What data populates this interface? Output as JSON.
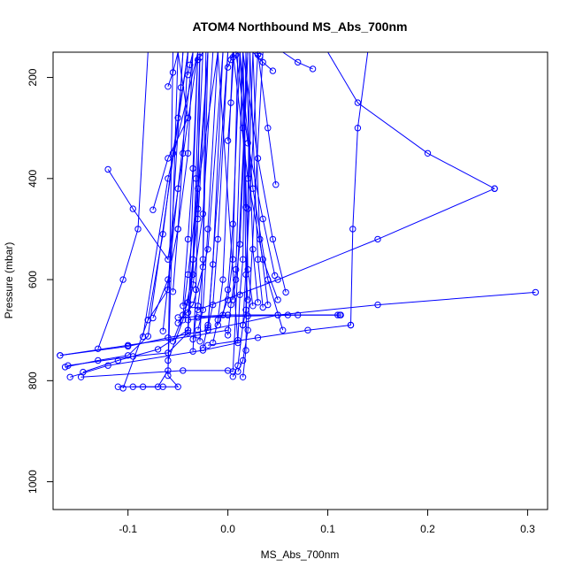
{
  "chart_data": {
    "type": "line",
    "title": "ATOM4 Northbound MS_Abs_700nm",
    "xlabel": "MS_Abs_700nm",
    "ylabel": "Pressure (mbar)",
    "xlim": [
      -0.175,
      0.32
    ],
    "ylim": [
      1055,
      150
    ],
    "y_reversed": true,
    "grid": false,
    "x_ticks": [
      -0.1,
      0.0,
      0.1,
      0.2,
      0.3
    ],
    "x_tick_labels": [
      "-0.1",
      "0.0",
      "0.1",
      "0.2",
      "0.3"
    ],
    "y_ticks": [
      200,
      400,
      600,
      800,
      1000
    ],
    "y_tick_labels": [
      "200",
      "400",
      "600",
      "800",
      "1000"
    ],
    "color": "#0000ff",
    "series": [
      {
        "x": [
          -0.11,
          -0.065,
          -0.05,
          -0.06,
          -0.055
        ],
        "y": [
          812,
          812,
          812,
          790,
          150
        ]
      },
      {
        "x": [
          -0.095,
          -0.085,
          -0.07,
          -0.06,
          -0.05
        ],
        "y": [
          812,
          812,
          812,
          780,
          150
        ]
      },
      {
        "x": [
          -0.147,
          -0.045,
          0.0,
          0.005,
          0.02
        ],
        "y": [
          793,
          780,
          780,
          782,
          150
        ]
      },
      {
        "x": [
          -0.158,
          -0.12,
          -0.025,
          0.01,
          -0.01
        ],
        "y": [
          793,
          770,
          740,
          725,
          150
        ]
      },
      {
        "x": [
          -0.163,
          -0.13,
          -0.1,
          -0.08,
          -0.04
        ],
        "y": [
          773,
          760,
          750,
          712,
          150
        ]
      },
      {
        "x": [
          -0.168,
          -0.1,
          -0.06,
          -0.02,
          0.0
        ],
        "y": [
          750,
          732,
          715,
          700,
          150
        ]
      },
      {
        "x": [
          -0.16,
          -0.095,
          -0.06,
          -0.04,
          -0.02
        ],
        "y": [
          770,
          752,
          745,
          705,
          150
        ]
      },
      {
        "x": [
          -0.145,
          -0.11,
          -0.07,
          -0.04,
          -0.03
        ],
        "y": [
          783,
          760,
          738,
          700,
          150
        ]
      },
      {
        "x": [
          -0.105,
          -0.08,
          -0.06,
          -0.045
        ],
        "y": [
          815,
          680,
          620,
          150
        ]
      },
      {
        "x": [
          -0.12,
          -0.095,
          -0.06,
          -0.03
        ],
        "y": [
          382,
          460,
          560,
          150
        ]
      },
      {
        "x": [
          -0.13,
          -0.105,
          -0.09,
          -0.08
        ],
        "y": [
          737,
          600,
          500,
          150
        ]
      },
      {
        "x": [
          -0.075,
          -0.06,
          -0.04,
          -0.05
        ],
        "y": [
          462,
          360,
          280,
          150
        ]
      },
      {
        "x": [
          -0.08,
          -0.065,
          -0.055,
          -0.04
        ],
        "y": [
          680,
          510,
          350,
          150
        ]
      },
      {
        "x": [
          -0.06,
          -0.045,
          -0.035,
          -0.025
        ],
        "y": [
          760,
          680,
          590,
          150
        ]
      },
      {
        "x": [
          -0.055,
          -0.04,
          -0.03,
          -0.02
        ],
        "y": [
          722,
          645,
          480,
          150
        ]
      },
      {
        "x": [
          -0.05,
          -0.035,
          -0.02,
          -0.005
        ],
        "y": [
          686,
          650,
          540,
          150
        ]
      },
      {
        "x": [
          -0.045,
          -0.04,
          -0.03,
          -0.01
        ],
        "y": [
          670,
          590,
          420,
          150
        ]
      },
      {
        "x": [
          -0.04,
          -0.035,
          -0.025,
          -0.015
        ],
        "y": [
          665,
          610,
          470,
          150
        ]
      },
      {
        "x": [
          -0.035,
          -0.03,
          -0.025,
          -0.02
        ],
        "y": [
          718,
          652,
          575,
          150
        ]
      },
      {
        "x": [
          -0.03,
          -0.025,
          -0.02,
          -0.01
        ],
        "y": [
          700,
          660,
          500,
          150
        ]
      },
      {
        "x": [
          -0.025,
          -0.02,
          -0.015,
          -0.005
        ],
        "y": [
          735,
          690,
          570,
          150
        ]
      },
      {
        "x": [
          -0.02,
          -0.015,
          -0.01,
          0.0
        ],
        "y": [
          695,
          650,
          520,
          150
        ]
      },
      {
        "x": [
          -0.015,
          -0.01,
          -0.005,
          0.005
        ],
        "y": [
          725,
          680,
          600,
          150
        ]
      },
      {
        "x": [
          -0.01,
          0.0,
          0.005,
          0.01
        ],
        "y": [
          690,
          640,
          560,
          150
        ]
      },
      {
        "x": [
          -0.005,
          0.0,
          0.005,
          0.012
        ],
        "y": [
          670,
          620,
          490,
          150
        ]
      },
      {
        "x": [
          0.0,
          0.003,
          0.008,
          0.015
        ],
        "y": [
          710,
          650,
          580,
          150
        ]
      },
      {
        "x": [
          0.005,
          0.008,
          0.012,
          0.02
        ],
        "y": [
          640,
          600,
          530,
          150
        ]
      },
      {
        "x": [
          0.01,
          0.012,
          0.015,
          0.018
        ],
        "y": [
          720,
          630,
          560,
          150
        ]
      },
      {
        "x": [
          0.015,
          0.018,
          0.02,
          0.025
        ],
        "y": [
          690,
          660,
          460,
          150
        ]
      },
      {
        "x": [
          0.005,
          0.01,
          0.015,
          0.03
        ],
        "y": [
          792,
          770,
          690,
          150
        ]
      },
      {
        "x": [
          0.01,
          0.015,
          0.02,
          0.035
        ],
        "y": [
          782,
          760,
          700,
          150
        ]
      },
      {
        "x": [
          0.015,
          0.018,
          0.022
        ],
        "y": [
          793,
          740,
          150
        ]
      },
      {
        "x": [
          -0.075,
          -0.06,
          -0.05,
          -0.04,
          -0.035
        ],
        "y": [
          676,
          600,
          500,
          350,
          150
        ]
      },
      {
        "x": [
          -0.055,
          -0.05,
          -0.045,
          -0.04
        ],
        "y": [
          624,
          500,
          350,
          150
        ]
      },
      {
        "x": [
          -0.045,
          -0.04,
          -0.035,
          -0.03
        ],
        "y": [
          652,
          520,
          380,
          150
        ]
      },
      {
        "x": [
          -0.04,
          -0.035,
          -0.032,
          -0.028
        ],
        "y": [
          700,
          560,
          400,
          150
        ]
      },
      {
        "x": [
          -0.035,
          -0.032,
          -0.03,
          -0.028
        ],
        "y": [
          742,
          620,
          460,
          150
        ]
      },
      {
        "x": [
          -0.028,
          -0.025,
          -0.022
        ],
        "y": [
          722,
          560,
          150
        ]
      },
      {
        "x": [
          -0.06,
          -0.055,
          -0.05
        ],
        "y": [
          218,
          190,
          150
        ]
      },
      {
        "x": [
          -0.05,
          -0.047,
          -0.045
        ],
        "y": [
          280,
          220,
          150
        ]
      },
      {
        "x": [
          -0.04,
          -0.038,
          -0.035
        ],
        "y": [
          195,
          175,
          150
        ]
      },
      {
        "x": [
          -0.03,
          -0.028,
          -0.025
        ],
        "y": [
          165,
          160,
          150
        ]
      },
      {
        "x": [
          0.0,
          0.003,
          0.005
        ],
        "y": [
          180,
          165,
          150
        ]
      },
      {
        "x": [
          0.005,
          0.008,
          0.01
        ],
        "y": [
          160,
          155,
          150
        ]
      },
      {
        "x": [
          0.0,
          0.003,
          0.006
        ],
        "y": [
          325,
          250,
          150
        ]
      },
      {
        "x": [
          0.018,
          0.015,
          0.012
        ],
        "y": [
          457,
          300,
          150
        ]
      },
      {
        "x": [
          0.048,
          0.04,
          0.03
        ],
        "y": [
          412,
          300,
          150
        ]
      },
      {
        "x": [
          0.045,
          0.035,
          0.025
        ],
        "y": [
          187,
          170,
          150
        ]
      },
      {
        "x": [
          0.085,
          0.07,
          0.055
        ],
        "y": [
          183,
          170,
          150
        ]
      },
      {
        "x": [
          0.032,
          0.03,
          0.028
        ],
        "y": [
          158,
          155,
          150
        ]
      },
      {
        "x": [
          0.05,
          0.035,
          0.02,
          0.005
        ],
        "y": [
          640,
          560,
          400,
          150
        ]
      },
      {
        "x": [
          0.055,
          0.04,
          0.025,
          0.012
        ],
        "y": [
          700,
          600,
          420,
          150
        ]
      },
      {
        "x": [
          0.058,
          0.045,
          0.03,
          0.015
        ],
        "y": [
          625,
          520,
          360,
          150
        ]
      },
      {
        "x": [
          0.047,
          0.035,
          0.02,
          0.008
        ],
        "y": [
          592,
          480,
          330,
          150
        ]
      },
      {
        "x": [
          0.04,
          0.032,
          0.025
        ],
        "y": [
          650,
          520,
          150
        ]
      },
      {
        "x": [
          0.035,
          0.03,
          0.022
        ],
        "y": [
          655,
          560,
          150
        ]
      },
      {
        "x": [
          0.03,
          0.025,
          0.018
        ],
        "y": [
          645,
          540,
          150
        ]
      },
      {
        "x": [
          0.025,
          0.02,
          0.015
        ],
        "y": [
          652,
          580,
          150
        ]
      },
      {
        "x": [
          0.02,
          0.018,
          0.015
        ],
        "y": [
          640,
          590,
          150
        ]
      },
      {
        "x": [
          0.308,
          0.15,
          0.05,
          -0.02
        ],
        "y": [
          625,
          650,
          670,
          700
        ]
      },
      {
        "x": [
          0.267,
          0.15,
          0.05,
          -0.03
        ],
        "y": [
          420,
          520,
          600,
          660
        ]
      },
      {
        "x": [
          0.123,
          0.08,
          0.03,
          -0.02
        ],
        "y": [
          690,
          700,
          715,
          730
        ]
      },
      {
        "x": [
          0.113,
          0.06,
          0.0,
          -0.05
        ],
        "y": [
          670,
          670,
          670,
          675
        ]
      },
      {
        "x": [
          0.11,
          0.05,
          0.0,
          -0.04
        ],
        "y": [
          670,
          670,
          670,
          680
        ]
      },
      {
        "x": [
          0.112,
          0.07,
          0.02,
          -0.03
        ],
        "y": [
          670,
          670,
          672,
          675
        ]
      },
      {
        "x": [
          -0.168,
          -0.1,
          -0.03,
          0.0
        ],
        "y": [
          750,
          730,
          710,
          700
        ]
      },
      {
        "x": [
          0.267,
          0.2,
          0.13,
          0.1
        ],
        "y": [
          420,
          350,
          250,
          150
        ]
      },
      {
        "x": [
          0.123,
          0.125,
          0.13,
          0.14
        ],
        "y": [
          690,
          500,
          300,
          150
        ]
      },
      {
        "x": [
          -0.085,
          -0.06,
          -0.03
        ],
        "y": [
          713,
          400,
          150
        ]
      },
      {
        "x": [
          -0.065,
          -0.05,
          -0.035
        ],
        "y": [
          702,
          420,
          150
        ]
      }
    ]
  }
}
